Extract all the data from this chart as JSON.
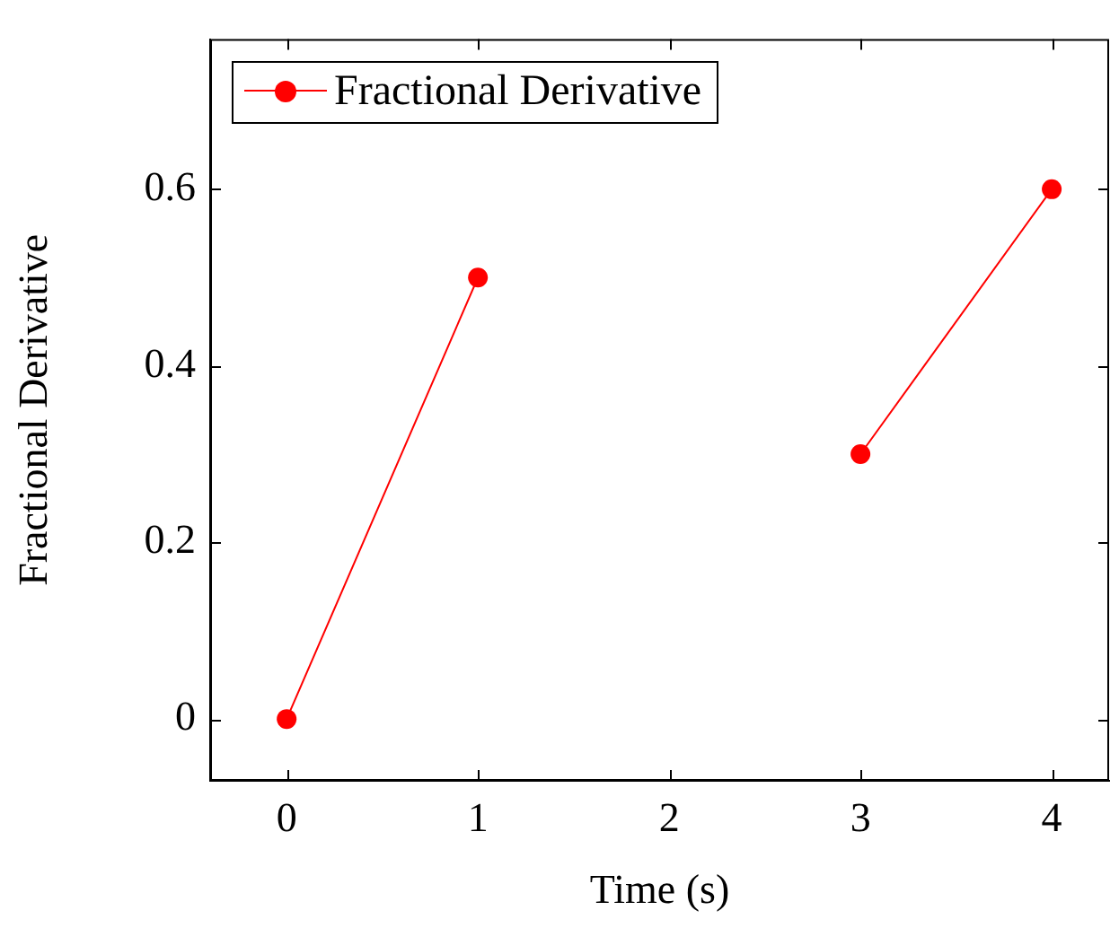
{
  "chart_data": {
    "type": "line",
    "xlabel": "Time (s)",
    "ylabel": "Fractional Derivative",
    "x": [
      0,
      1,
      2,
      3,
      4
    ],
    "series": [
      {
        "name": "Fractional Derivative",
        "color": "#ff0000",
        "values": [
          0,
          0.5,
          null,
          0.3,
          0.6
        ]
      }
    ],
    "xlim": [
      -0.4,
      4.3
    ],
    "xticks": [
      0,
      1,
      2,
      3,
      4
    ],
    "ylim": [
      -0.07,
      0.77
    ],
    "yticks": [
      0,
      0.2,
      0.4,
      0.6
    ],
    "grid": false,
    "legend": "top left",
    "marker": "circle",
    "line_style": "solid"
  }
}
